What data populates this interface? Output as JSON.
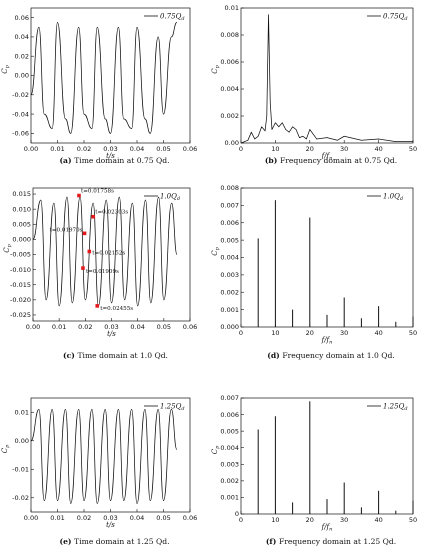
{
  "chart_data": [
    {
      "id": "a",
      "type": "line",
      "x": [
        0.0,
        0.003,
        0.005,
        0.008,
        0.01,
        0.013,
        0.015,
        0.018,
        0.02,
        0.023,
        0.025,
        0.028,
        0.03,
        0.033,
        0.035,
        0.038,
        0.04,
        0.043,
        0.045,
        0.048,
        0.05,
        0.053,
        0.055
      ],
      "y": [
        -0.02,
        0.05,
        -0.04,
        -0.055,
        0.055,
        -0.045,
        -0.06,
        0.05,
        -0.04,
        -0.055,
        0.05,
        -0.045,
        -0.06,
        0.05,
        -0.045,
        -0.055,
        0.05,
        -0.045,
        -0.06,
        0.04,
        -0.04,
        0.04,
        0.055
      ],
      "xlim": [
        0,
        0.06
      ],
      "ylim": [
        -0.07,
        0.07
      ],
      "xticks": [
        "0.00",
        "0.01",
        "0.02",
        "0.03",
        "0.04",
        "0.05",
        "0.06"
      ],
      "yticks": [
        "0.06",
        "0.04",
        "0.02",
        "0.00",
        "-0.02",
        "-0.04",
        "-0.06"
      ],
      "xlabel": "t/s",
      "ylabel": "Cp",
      "legend": "0.75Qd",
      "legend_position": "top-right",
      "caption_label": "(a)",
      "caption_text": "Time domain at 0.75 Qd."
    },
    {
      "id": "b",
      "type": "line",
      "x": [
        0,
        2,
        3,
        4,
        5,
        6,
        7,
        7.5,
        8,
        8.5,
        9,
        10,
        11,
        12,
        13,
        14,
        15,
        16,
        17,
        18,
        19,
        20,
        22,
        25,
        28,
        30,
        35,
        40,
        45,
        50
      ],
      "y": [
        0,
        0.0002,
        0.0008,
        0.0003,
        0.0005,
        0.0012,
        0.0009,
        0.002,
        0.0095,
        0.003,
        0.001,
        0.0015,
        0.0012,
        0.0015,
        0.001,
        0.0008,
        0.0012,
        0.001,
        0.0004,
        0.0005,
        0.0003,
        0.001,
        0.0003,
        0.0004,
        0.0002,
        0.0005,
        0.0002,
        0.0003,
        0.0001,
        0.0001
      ],
      "xlim": [
        0,
        50
      ],
      "ylim": [
        0,
        0.01
      ],
      "xticks": [
        "0",
        "10",
        "20",
        "30",
        "40",
        "50"
      ],
      "yticks": [
        "0.01",
        "0.008",
        "0.006",
        "0.004",
        "0.002",
        "0.00"
      ],
      "xlabel": "f/fn",
      "ylabel": "Cp",
      "legend": "0.75Qd",
      "legend_position": "top-right",
      "caption_label": "(b)",
      "caption_text": "Frequency domain at 0.75 Qd."
    },
    {
      "id": "c",
      "type": "line",
      "x": [
        0.0,
        0.003,
        0.005,
        0.008,
        0.01,
        0.013,
        0.015,
        0.018,
        0.02,
        0.023,
        0.025,
        0.028,
        0.03,
        0.033,
        0.035,
        0.038,
        0.04,
        0.043,
        0.045,
        0.048,
        0.05,
        0.053,
        0.055
      ],
      "y": [
        0.0,
        0.013,
        -0.02,
        0.012,
        -0.022,
        0.014,
        -0.021,
        0.014,
        -0.02,
        0.012,
        -0.022,
        0.013,
        -0.021,
        0.014,
        -0.02,
        0.012,
        -0.022,
        0.013,
        -0.021,
        0.014,
        -0.02,
        0.012,
        -0.005
      ],
      "xlim": [
        0,
        0.06
      ],
      "ylim": [
        -0.027,
        0.017
      ],
      "xticks": [
        "0.00",
        "0.01",
        "0.02",
        "0.03",
        "0.04",
        "0.05",
        "0.06"
      ],
      "yticks": [
        "0.015",
        "0.010",
        "0.005",
        "0.000",
        "-0.005",
        "-0.010",
        "-0.015",
        "-0.020",
        "-0.025"
      ],
      "xlabel": "t/s",
      "ylabel": "Cp",
      "legend": "1.0Qd",
      "legend_position": "top-right",
      "annotations": [
        {
          "text": "t=0.01758s",
          "x": 0.01758,
          "y": 0.0145
        },
        {
          "text": "t=0.02303s",
          "x": 0.02303,
          "y": 0.0075
        },
        {
          "text": "t=0.01970s",
          "x": 0.0197,
          "y": 0.002
        },
        {
          "text": "t=0.02152s",
          "x": 0.02152,
          "y": -0.004
        },
        {
          "text": "t=0.01909s",
          "x": 0.01909,
          "y": -0.0095
        },
        {
          "text": "t=0.02455s",
          "x": 0.02455,
          "y": -0.022
        }
      ],
      "caption_label": "(c)",
      "caption_text": "Time domain at 1.0 Qd."
    },
    {
      "id": "d",
      "type": "bar",
      "x": [
        5,
        10,
        15,
        20,
        25,
        30,
        35,
        40,
        45,
        50
      ],
      "y": [
        0.0051,
        0.0073,
        0.001,
        0.0063,
        0.0007,
        0.0017,
        0.0005,
        0.0012,
        0.0003,
        0.0006
      ],
      "xlim": [
        0,
        50
      ],
      "ylim": [
        0,
        0.008
      ],
      "xticks": [
        "0",
        "10",
        "20",
        "30",
        "40",
        "50"
      ],
      "yticks": [
        "0.008",
        "0.007",
        "0.006",
        "0.005",
        "0.004",
        "0.003",
        "0.002",
        "0.001",
        "0.000"
      ],
      "xlabel": "f/fn",
      "ylabel": "Cp",
      "legend": "1.0Qd",
      "legend_position": "top-right",
      "caption_label": "(d)",
      "caption_text": "Frequency domain at 1.0 Qd."
    },
    {
      "id": "e",
      "type": "line",
      "x": [
        0.0,
        0.003,
        0.005,
        0.008,
        0.01,
        0.013,
        0.015,
        0.018,
        0.02,
        0.023,
        0.025,
        0.028,
        0.03,
        0.033,
        0.035,
        0.038,
        0.04,
        0.043,
        0.045,
        0.048,
        0.05,
        0.053,
        0.055
      ],
      "y": [
        0.0,
        0.011,
        -0.021,
        0.011,
        -0.021,
        0.011,
        -0.022,
        0.011,
        -0.021,
        0.011,
        -0.022,
        0.011,
        -0.021,
        0.011,
        -0.021,
        0.011,
        -0.022,
        0.011,
        -0.021,
        0.011,
        -0.021,
        0.011,
        -0.003
      ],
      "xlim": [
        0,
        0.06
      ],
      "ylim": [
        -0.025,
        0.015
      ],
      "xticks": [
        "0.00",
        "0.01",
        "0.02",
        "0.03",
        "0.04",
        "0.05",
        "0.06"
      ],
      "yticks": [
        "0.01",
        "0.00",
        "-0.01",
        "-0.02"
      ],
      "xlabel": "t/s",
      "ylabel": "Cp",
      "legend": "1.25Qd",
      "legend_position": "top-right",
      "caption_label": "(e)",
      "caption_text": "Time domain at 1.25 Qd."
    },
    {
      "id": "f",
      "type": "bar",
      "x": [
        5,
        10,
        15,
        20,
        25,
        30,
        35,
        40,
        45,
        50
      ],
      "y": [
        0.0051,
        0.0059,
        0.0007,
        0.0068,
        0.0009,
        0.0019,
        0.0004,
        0.0014,
        0.0002,
        0.0008
      ],
      "xlim": [
        0,
        50
      ],
      "ylim": [
        0,
        0.007
      ],
      "xticks": [
        "0",
        "10",
        "20",
        "30",
        "40",
        "50"
      ],
      "yticks": [
        "0.007",
        "0.006",
        "0.005",
        "0.004",
        "0.003",
        "0.002",
        "0.001",
        "0"
      ],
      "xlabel": "f/fn",
      "ylabel": "Cp",
      "legend": "1.25Qd",
      "legend_position": "top-right",
      "caption_label": "(f)",
      "caption_text": "Frequency domain at 1.25 Qd."
    }
  ]
}
